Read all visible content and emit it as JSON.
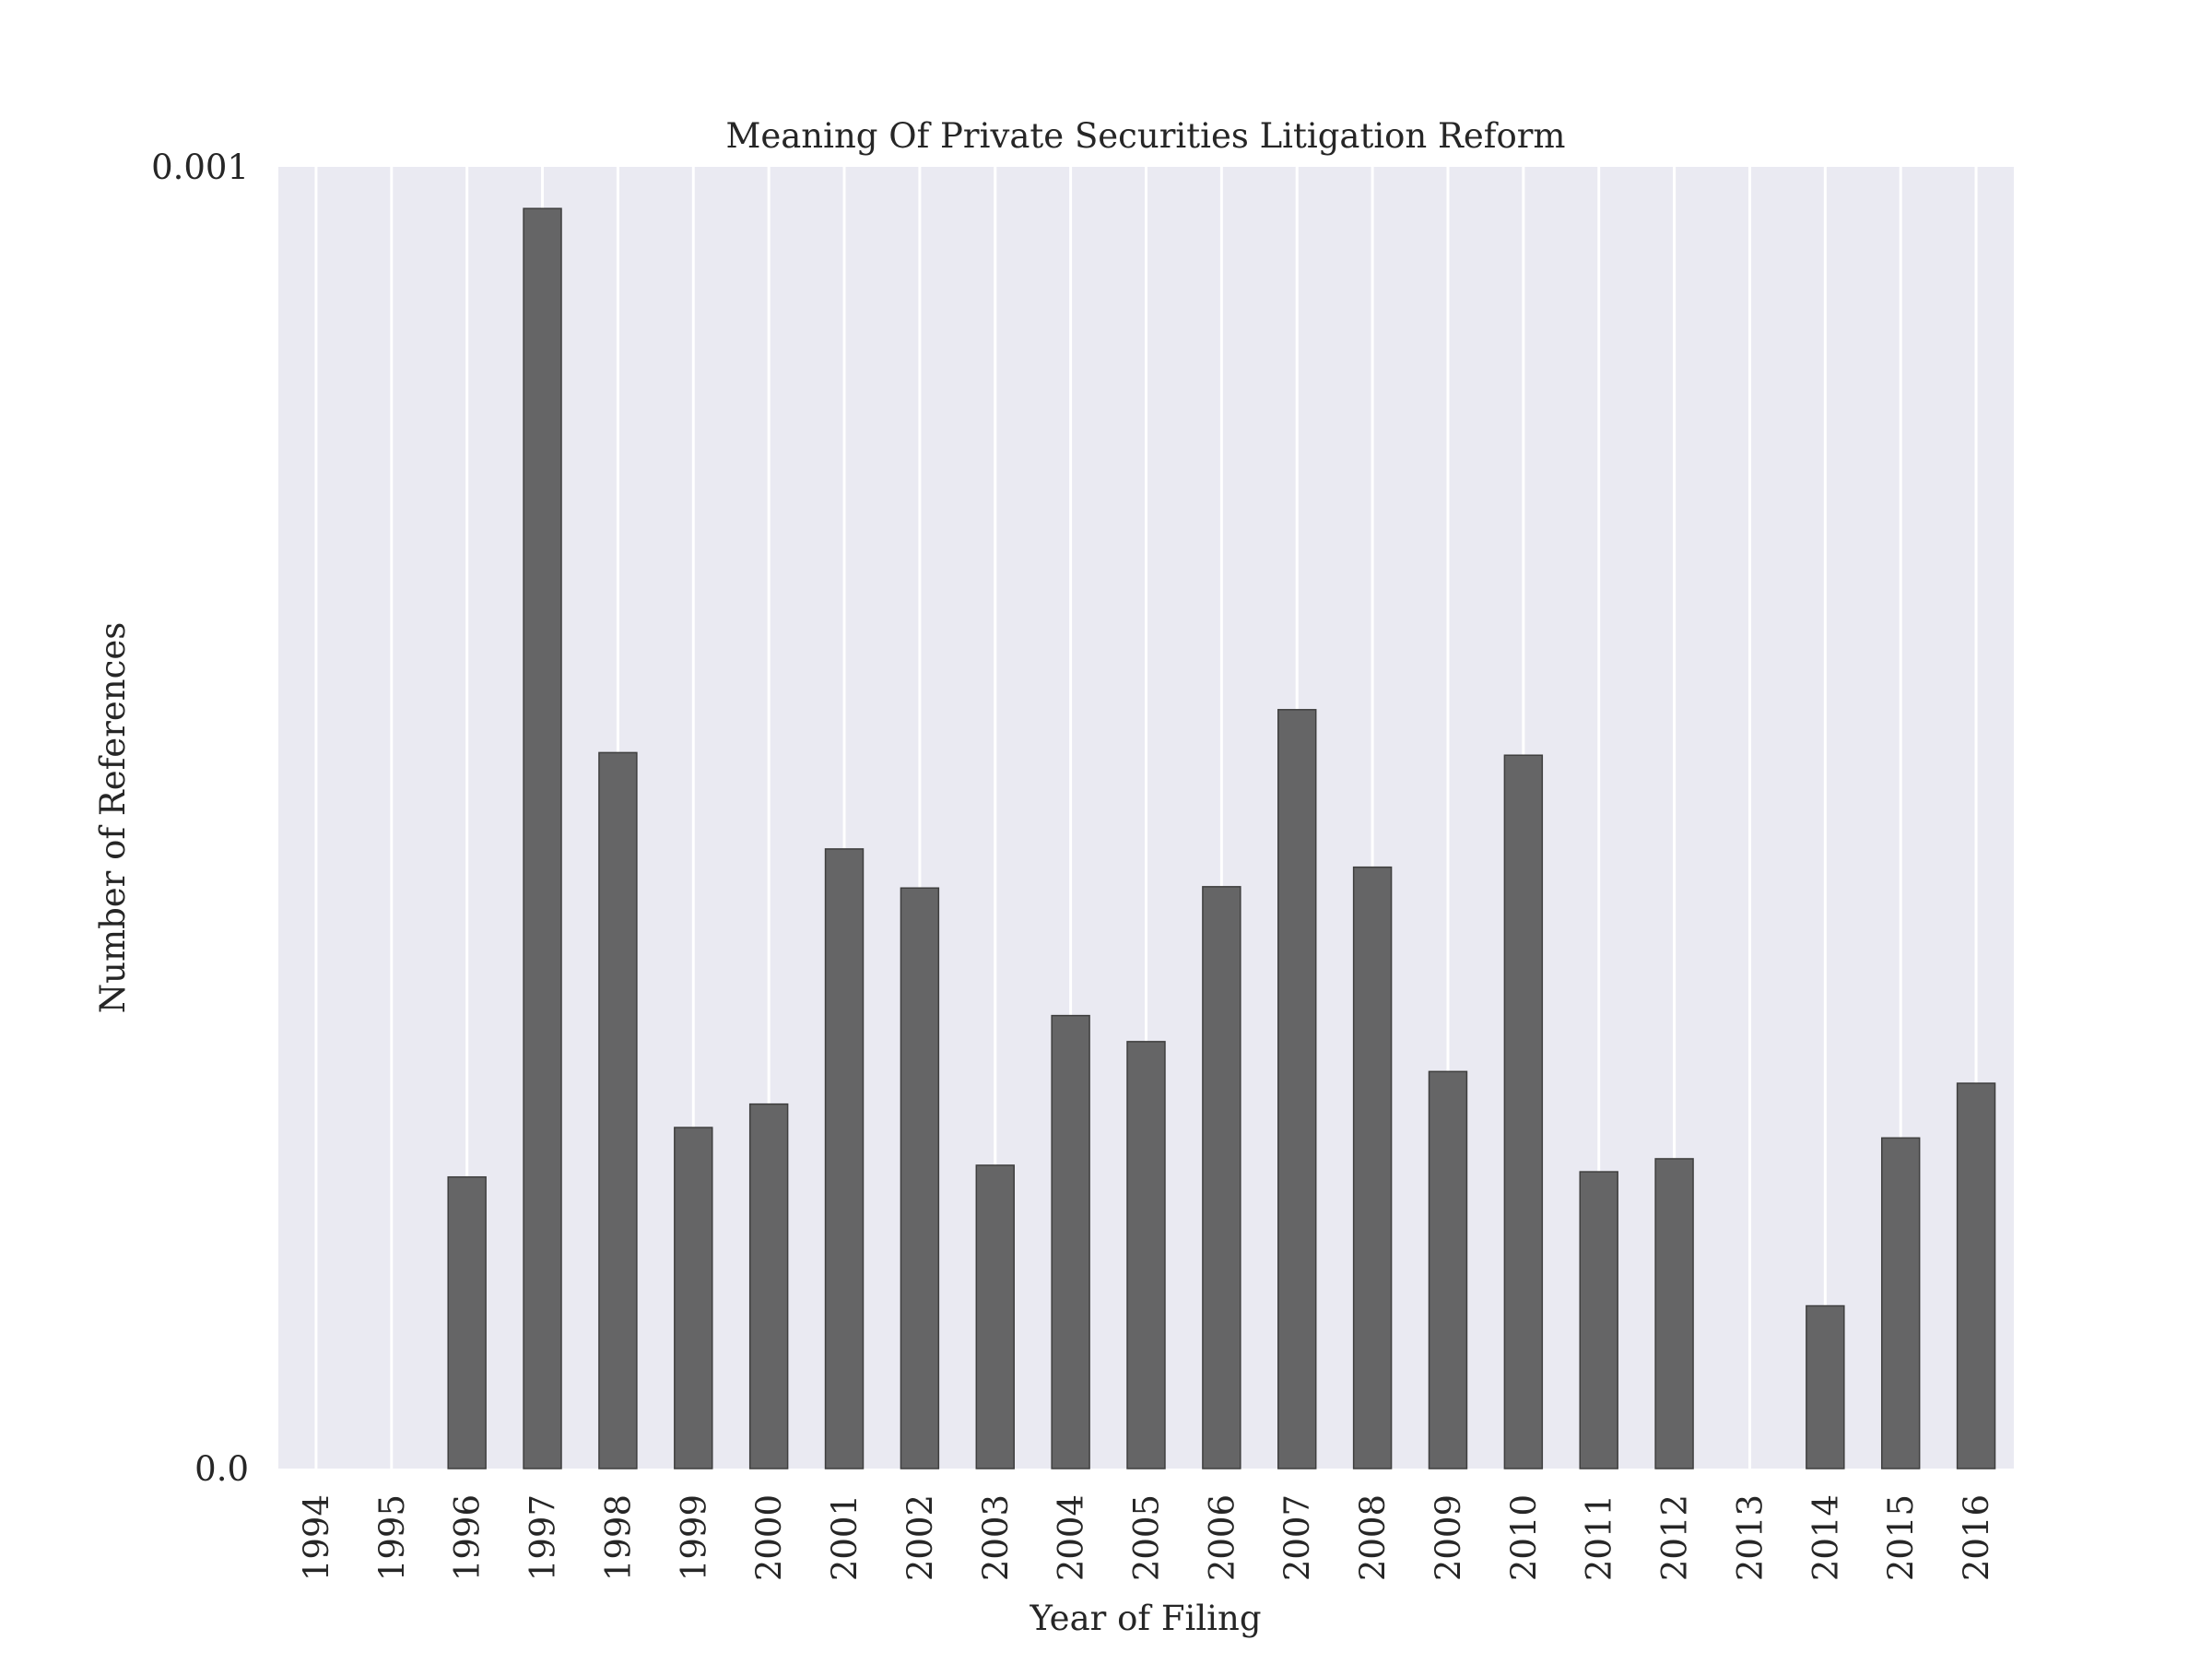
{
  "chart_data": {
    "type": "bar",
    "title": "Meaning Of Private Securities Litigation Reform",
    "xlabel": "Year of Filing",
    "ylabel": "Number of References",
    "categories": [
      "1994",
      "1995",
      "1996",
      "1997",
      "1998",
      "1999",
      "2000",
      "2001",
      "2002",
      "2003",
      "2004",
      "2005",
      "2006",
      "2007",
      "2008",
      "2009",
      "2010",
      "2011",
      "2012",
      "2013",
      "2014",
      "2015",
      "2016"
    ],
    "values": [
      0.0,
      0.0,
      0.000224,
      0.000968,
      0.00055,
      0.000262,
      0.00028,
      0.000476,
      0.000446,
      0.000233,
      0.000348,
      0.000328,
      0.000447,
      0.000583,
      0.000462,
      0.000305,
      0.000548,
      0.000228,
      0.000238,
      0.0,
      0.000125,
      0.000254,
      0.000296
    ],
    "ylim": [
      0,
      0.001
    ],
    "yticks": [
      {
        "value": 0,
        "label": "0.0"
      },
      {
        "value": 0.001,
        "label": "0.001"
      }
    ],
    "grid": "vertical",
    "legend": "none",
    "tick_label_rotation": 90
  },
  "colors": {
    "plot_background": "#eaeaf2",
    "bar_fill": "#656566",
    "bar_edge": "#3f3f3f",
    "grid": "#ffffff",
    "text": "#262626"
  }
}
